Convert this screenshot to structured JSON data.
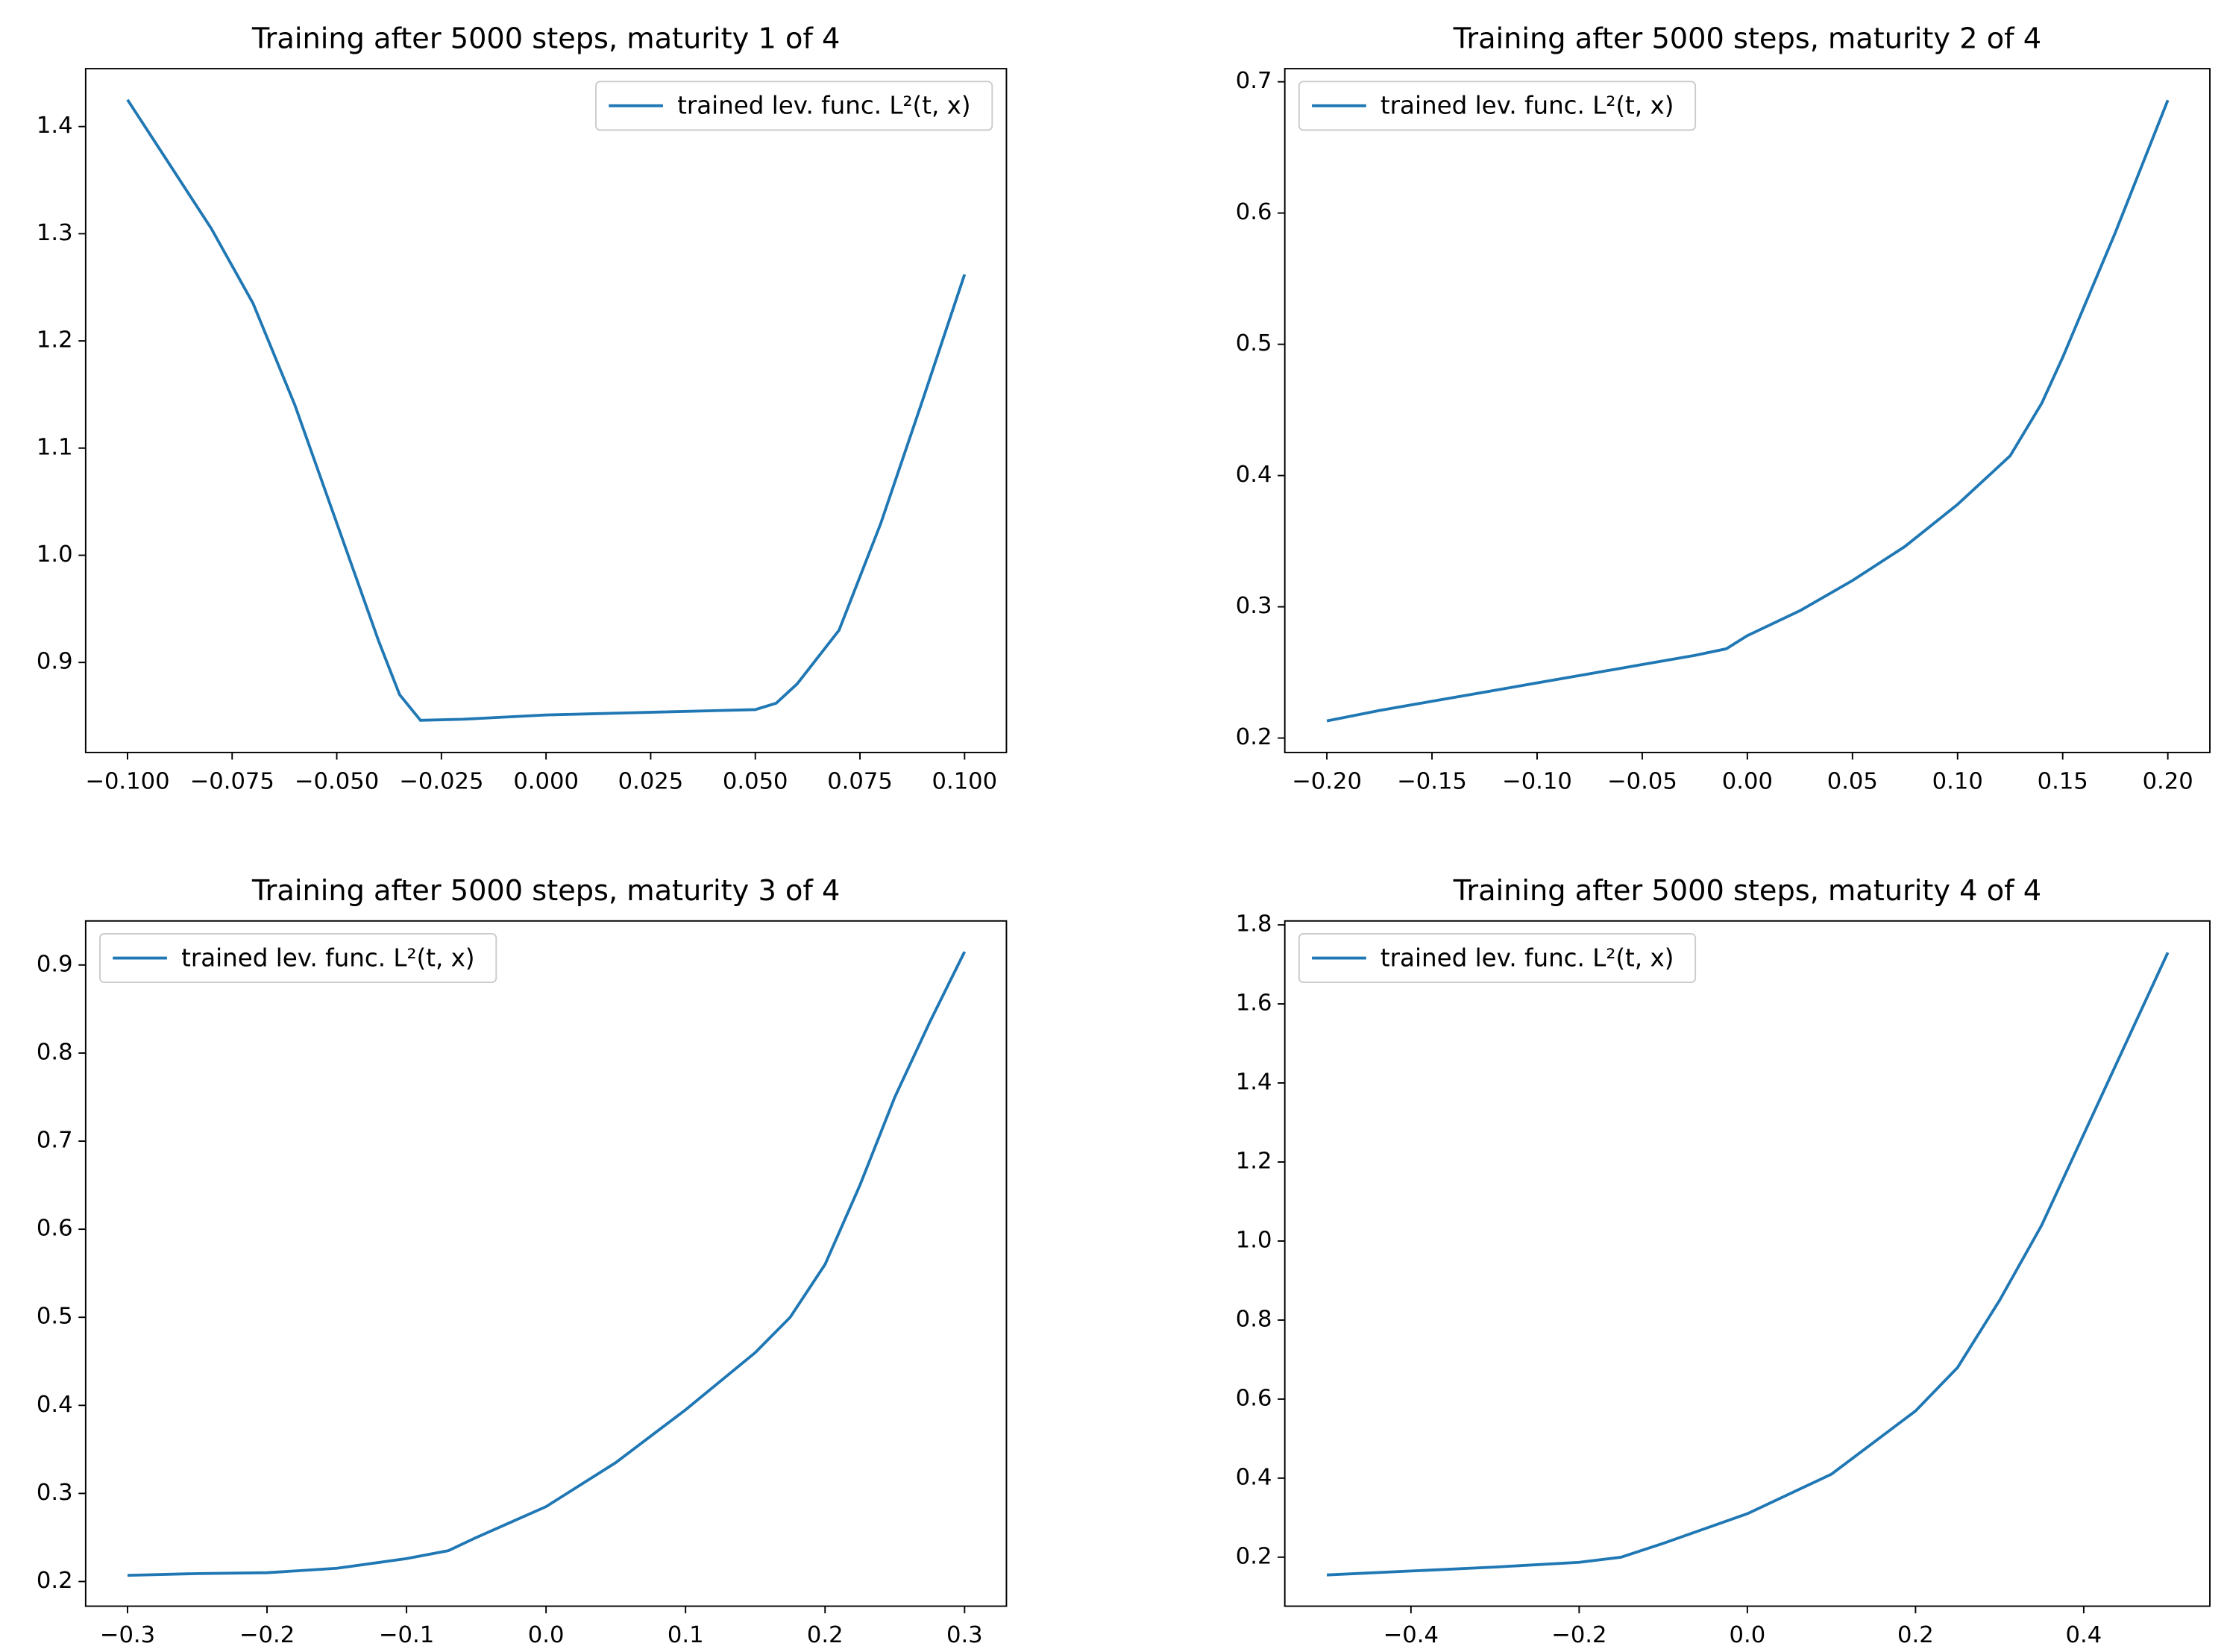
{
  "chart_data": [
    {
      "type": "line",
      "title": "Training after 5000 steps, maturity 1 of 4",
      "legend": "upper right",
      "x": [
        -0.1,
        -0.09,
        -0.08,
        -0.07,
        -0.06,
        -0.05,
        -0.04,
        -0.035,
        -0.03,
        -0.02,
        -0.01,
        0,
        0.01,
        0.02,
        0.03,
        0.04,
        0.05,
        0.055,
        0.06,
        0.07,
        0.08,
        0.09,
        0.1
      ],
      "series": [
        {
          "name": "trained lev. func. L²(t, x)",
          "color": "#1f77b4",
          "values": [
            1.425,
            1.365,
            1.305,
            1.235,
            1.14,
            1.03,
            0.92,
            0.87,
            0.846,
            0.847,
            0.849,
            0.851,
            0.852,
            0.853,
            0.854,
            0.855,
            0.856,
            0.862,
            0.88,
            0.93,
            1.03,
            1.145,
            1.262
          ]
        }
      ],
      "xlim": [
        -0.11,
        0.11
      ],
      "ylim": [
        0.816,
        1.454
      ],
      "xticks": [
        {
          "value": -0.1,
          "label": "−0.100"
        },
        {
          "value": -0.075,
          "label": "−0.075"
        },
        {
          "value": -0.05,
          "label": "−0.050"
        },
        {
          "value": -0.025,
          "label": "−0.025"
        },
        {
          "value": 0,
          "label": "0.000"
        },
        0.025,
        {
          "value": 0.05,
          "label": "0.050"
        },
        0.075,
        {
          "value": 0.1,
          "label": "0.100"
        }
      ],
      "yticks": [
        0.9,
        {
          "value": 1.0,
          "label": "1.0"
        },
        1.1,
        1.2,
        1.3,
        1.4
      ]
    },
    {
      "type": "line",
      "title": "Training after 5000 steps, maturity 2 of 4",
      "legend": "upper left",
      "x": [
        -0.2,
        -0.175,
        -0.15,
        -0.125,
        -0.1,
        -0.075,
        -0.05,
        -0.025,
        -0.01,
        0,
        0.025,
        0.05,
        0.075,
        0.1,
        0.125,
        0.14,
        0.15,
        0.175,
        0.2
      ],
      "series": [
        {
          "name": "trained lev. func. L²(t, x)",
          "color": "#1f77b4",
          "values": [
            0.213,
            0.221,
            0.228,
            0.235,
            0.242,
            0.249,
            0.256,
            0.263,
            0.268,
            0.278,
            0.297,
            0.32,
            0.346,
            0.378,
            0.415,
            0.455,
            0.49,
            0.585,
            0.686
          ]
        }
      ],
      "xlim": [
        -0.22,
        0.22
      ],
      "ylim": [
        0.189,
        0.71
      ],
      "xticks": [
        {
          "value": -0.2,
          "label": "−0.20"
        },
        {
          "value": -0.15,
          "label": "−0.15"
        },
        {
          "value": -0.1,
          "label": "−0.10"
        },
        {
          "value": -0.05,
          "label": "−0.05"
        },
        {
          "value": 0,
          "label": "0.00"
        },
        0.05,
        {
          "value": 0.1,
          "label": "0.10"
        },
        0.15,
        {
          "value": 0.2,
          "label": "0.20"
        }
      ],
      "yticks": [
        0.2,
        0.3,
        0.4,
        0.5,
        0.6,
        0.7
      ]
    },
    {
      "type": "line",
      "title": "Training after 5000 steps, maturity 3 of 4",
      "legend": "upper left",
      "x": [
        -0.3,
        -0.25,
        -0.2,
        -0.15,
        -0.1,
        -0.07,
        -0.05,
        0,
        0.05,
        0.1,
        0.15,
        0.175,
        0.2,
        0.225,
        0.25,
        0.275,
        0.3
      ],
      "series": [
        {
          "name": "trained lev. func. L²(t, x)",
          "color": "#1f77b4",
          "values": [
            0.207,
            0.209,
            0.21,
            0.215,
            0.226,
            0.235,
            0.25,
            0.285,
            0.335,
            0.395,
            0.46,
            0.5,
            0.56,
            0.65,
            0.75,
            0.835,
            0.915
          ]
        }
      ],
      "xlim": [
        -0.33,
        0.33
      ],
      "ylim": [
        0.172,
        0.95
      ],
      "xticks": [
        {
          "value": -0.3,
          "label": "−0.3"
        },
        {
          "value": -0.2,
          "label": "−0.2"
        },
        {
          "value": -0.1,
          "label": "−0.1"
        },
        {
          "value": 0,
          "label": "0.0"
        },
        0.1,
        0.2,
        0.3
      ],
      "yticks": [
        0.2,
        0.3,
        0.4,
        0.5,
        0.6,
        0.7,
        0.8,
        0.9
      ]
    },
    {
      "type": "line",
      "title": "Training after 5000 steps, maturity 4 of 4",
      "legend": "upper left",
      "x": [
        -0.5,
        -0.4,
        -0.3,
        -0.2,
        -0.15,
        -0.1,
        0,
        0.1,
        0.2,
        0.25,
        0.3,
        0.35,
        0.4,
        0.45,
        0.5
      ],
      "series": [
        {
          "name": "trained lev. func. L²(t, x)",
          "color": "#1f77b4",
          "values": [
            0.155,
            0.165,
            0.175,
            0.187,
            0.2,
            0.235,
            0.31,
            0.41,
            0.57,
            0.68,
            0.85,
            1.04,
            1.27,
            1.5,
            1.73
          ]
        }
      ],
      "xlim": [
        -0.55,
        0.55
      ],
      "ylim": [
        0.076,
        1.81
      ],
      "xticks": [
        {
          "value": -0.4,
          "label": "−0.4"
        },
        {
          "value": -0.2,
          "label": "−0.2"
        },
        {
          "value": 0,
          "label": "0.0"
        },
        0.2,
        0.4
      ],
      "yticks": [
        0.2,
        0.4,
        0.6,
        0.8,
        {
          "value": 1.0,
          "label": "1.0"
        },
        1.2,
        1.4,
        1.6,
        1.8
      ]
    }
  ]
}
